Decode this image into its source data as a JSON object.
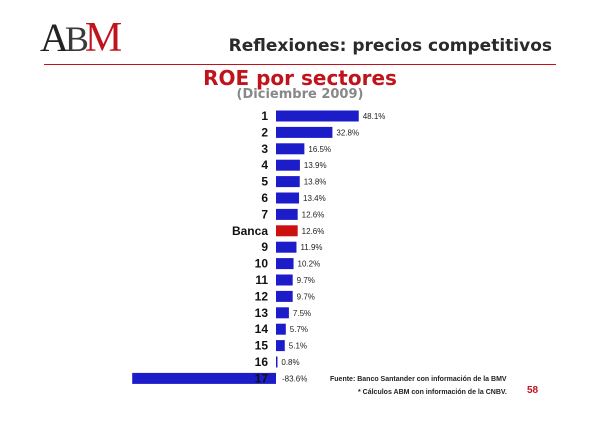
{
  "logo": {
    "text": "ABM"
  },
  "header": {
    "title": "Reflexiones: precios competitivos"
  },
  "footer": {
    "source": "Fuente: Banco Santander con información de la BMV",
    "note": "* Cálculos ABM con información de la CNBV.",
    "page_number": "58"
  },
  "chart_data": {
    "type": "bar",
    "orientation": "horizontal",
    "title": "ROE por sectores",
    "subtitle": "(Diciembre 2009)",
    "categories": [
      "1",
      "2",
      "3",
      "4",
      "5",
      "6",
      "7",
      "Banca",
      "9",
      "10",
      "11",
      "12",
      "13",
      "14",
      "15",
      "16",
      "17"
    ],
    "values": [
      48.1,
      32.8,
      16.5,
      13.9,
      13.8,
      13.4,
      12.6,
      12.6,
      11.9,
      10.2,
      9.7,
      9.7,
      7.5,
      5.7,
      5.1,
      0.8,
      -83.6
    ],
    "data_labels": [
      "48.1%",
      "32.8%",
      "16.5%",
      "13.9%",
      "13.8%",
      "13.4%",
      "12.6%",
      "12.6%",
      "11.9%",
      "10.2%",
      "9.7%",
      "9.7%",
      "7.5%",
      "5.7%",
      "5.1%",
      "0.8%",
      "-83.6%"
    ],
    "highlight_category": "Banca",
    "colors": {
      "bar": "#1c1cc8",
      "highlight": "#cc1010",
      "label": "#222222"
    },
    "grid": false,
    "legend": "none"
  }
}
